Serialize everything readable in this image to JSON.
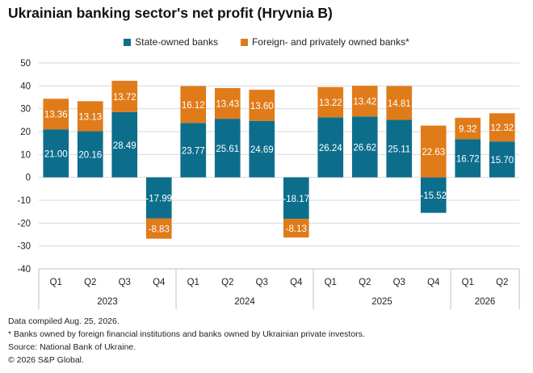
{
  "title": "Ukrainian banking sector's net profit (Hryvnia B)",
  "legend": [
    {
      "label": "State-owned banks",
      "color": "#0d6e8c"
    },
    {
      "label": "Foreign- and privately owned banks*",
      "color": "#e07b1a"
    }
  ],
  "notes": [
    "Data compiled Aug. 25, 2026.",
    "* Banks owned by foreign financial institutions and banks owned by Ukrainian private investors.",
    "Source: National Bank of Ukraine.",
    "© 2026 S&P Global."
  ],
  "chart_data": {
    "type": "bar",
    "stacked": true,
    "categories": [
      "Q1",
      "Q2",
      "Q3",
      "Q4",
      "Q1",
      "Q2",
      "Q3",
      "Q4",
      "Q1",
      "Q2",
      "Q3",
      "Q4",
      "Q1",
      "Q2"
    ],
    "groups": [
      {
        "label": "2023",
        "count": 4
      },
      {
        "label": "2024",
        "count": 4
      },
      {
        "label": "2025",
        "count": 4
      },
      {
        "label": "2026",
        "count": 2
      }
    ],
    "series": [
      {
        "name": "State-owned banks",
        "values": [
          21.0,
          20.16,
          28.49,
          -17.99,
          23.77,
          25.61,
          24.69,
          -18.17,
          26.24,
          26.62,
          25.11,
          -15.52,
          16.72,
          15.7
        ]
      },
      {
        "name": "Foreign- and privately owned banks*",
        "values": [
          13.36,
          13.13,
          13.72,
          -8.83,
          16.12,
          13.43,
          13.6,
          -8.13,
          13.22,
          13.42,
          14.81,
          22.63,
          9.32,
          12.32
        ]
      }
    ],
    "ylim": [
      -40,
      50
    ],
    "yticks": [
      -40,
      -30,
      -20,
      -10,
      0,
      10,
      20,
      30,
      40,
      50
    ],
    "colors": [
      "#0d6e8c",
      "#e07b1a"
    ],
    "grid": true
  }
}
